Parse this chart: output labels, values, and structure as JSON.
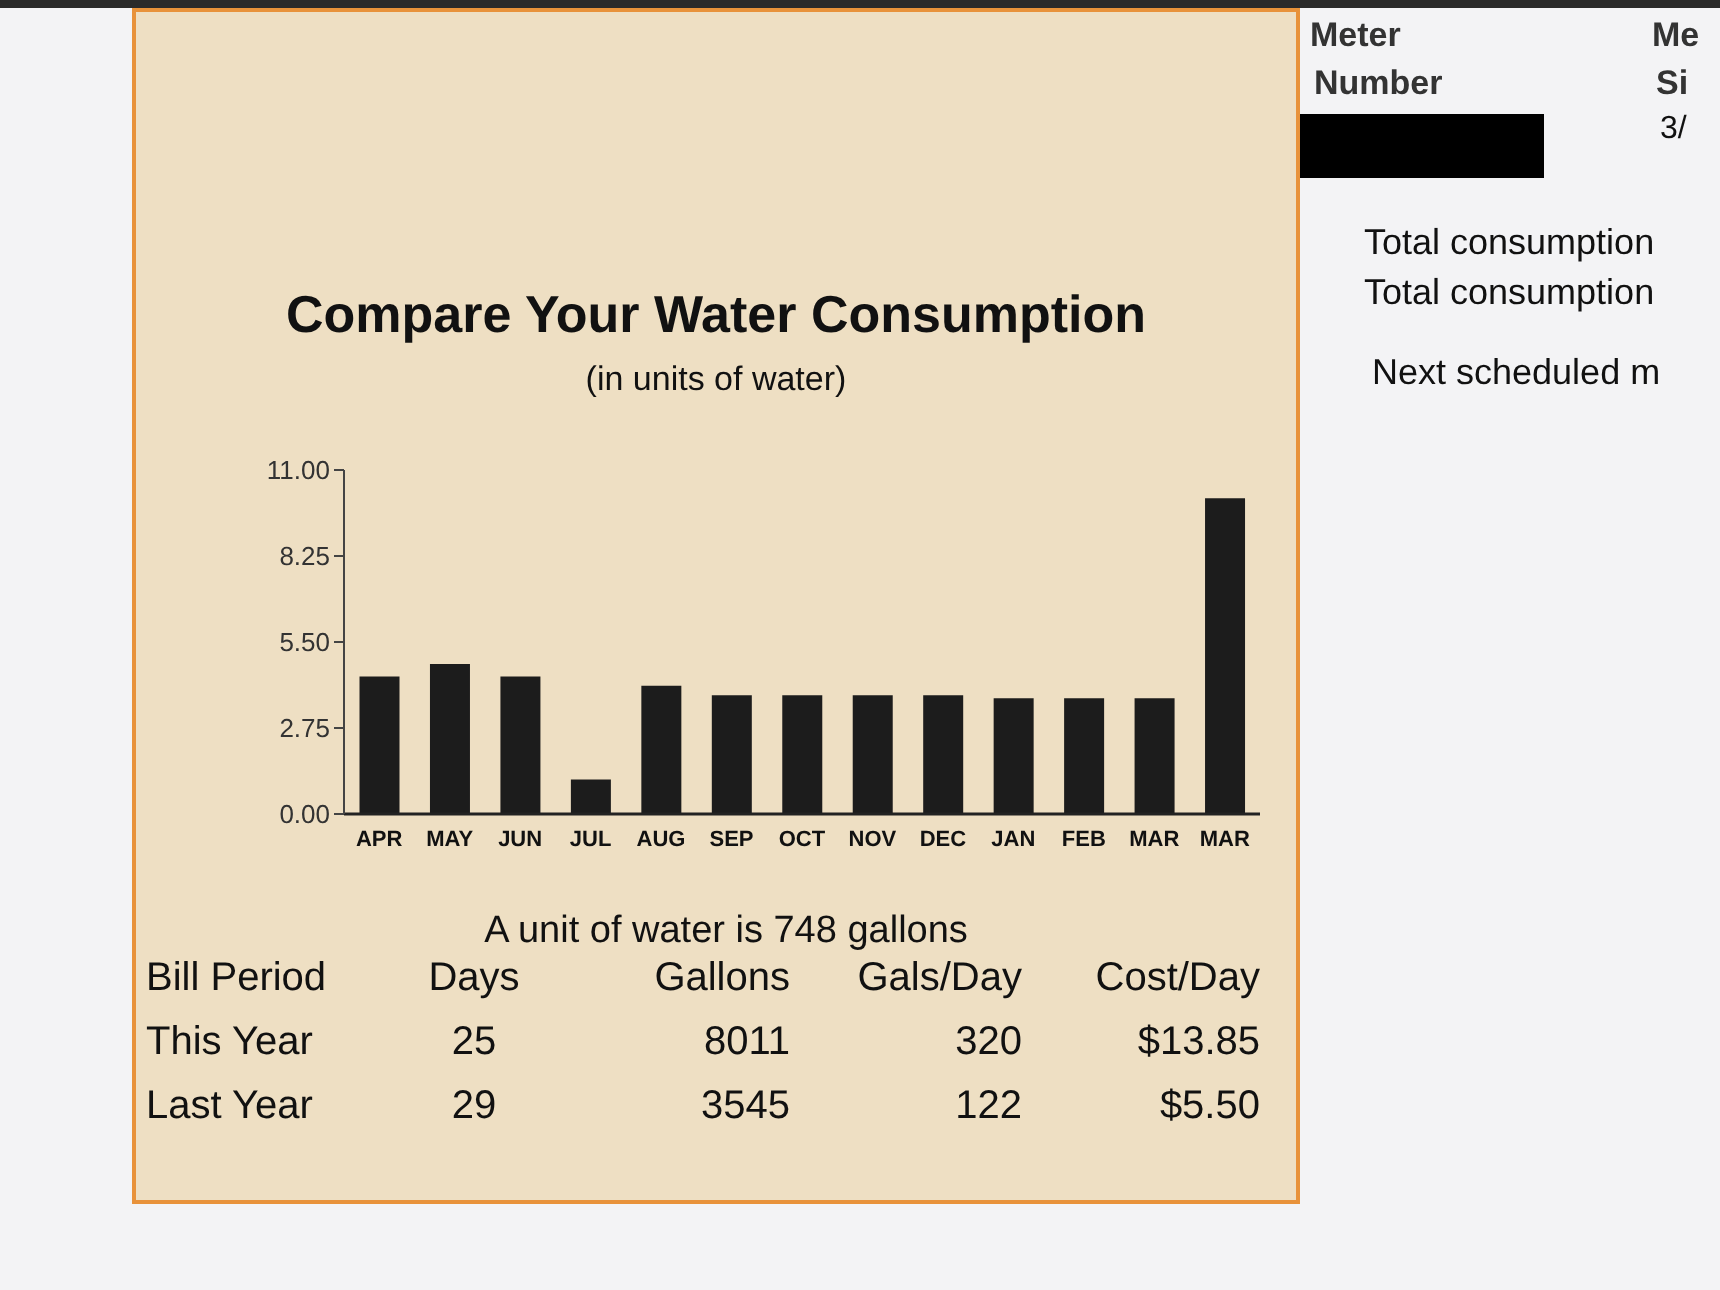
{
  "chart_data": {
    "type": "bar",
    "title": "Compare Your Water Consumption",
    "subtitle": "(in units of water)",
    "categories": [
      "APR",
      "MAY",
      "JUN",
      "JUL",
      "AUG",
      "SEP",
      "OCT",
      "NOV",
      "DEC",
      "JAN",
      "FEB",
      "MAR",
      "MAR"
    ],
    "values": [
      4.4,
      4.8,
      4.4,
      1.1,
      4.1,
      3.8,
      3.8,
      3.8,
      3.8,
      3.7,
      3.7,
      3.7,
      10.1
    ],
    "color": "#1c1c1c",
    "ylim": [
      0,
      11
    ],
    "yticks": [
      {
        "value": 0,
        "label": "0.00"
      },
      {
        "value": 2.75,
        "label": "2.75"
      },
      {
        "value": 5.5,
        "label": "5.50"
      },
      {
        "value": 8.25,
        "label": "8.25"
      },
      {
        "value": 11,
        "label": "11.00"
      }
    ],
    "annotations": [
      "A unit of water is 748 gallons",
      "Bill Period",
      "Days",
      "Gallons",
      "Gals/Day",
      "Cost/Day",
      "This Year",
      "25",
      "8011",
      "320",
      "$13.85",
      "Last Year",
      "29",
      "3545",
      "122",
      "$5.50",
      "Meter",
      "Number",
      "Me",
      "Si",
      "3/",
      "Total consumption",
      "Total consumption",
      "Next scheduled m"
    ]
  }
}
